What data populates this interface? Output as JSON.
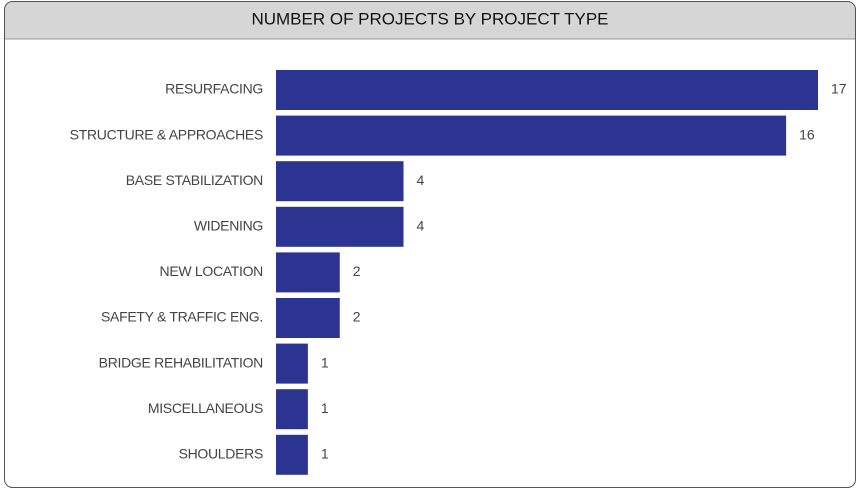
{
  "chart_data": {
    "type": "bar",
    "orientation": "horizontal",
    "title": "NUMBER OF PROJECTS BY PROJECT TYPE",
    "categories": [
      "RESURFACING",
      "STRUCTURE & APPROACHES",
      "BASE STABILIZATION",
      "WIDENING",
      "NEW LOCATION",
      "SAFETY & TRAFFIC ENG.",
      "BRIDGE REHABILITATION",
      "MISCELLANEOUS",
      "SHOULDERS"
    ],
    "values": [
      17,
      16,
      4,
      4,
      2,
      2,
      1,
      1,
      1
    ],
    "color": "#2b3591"
  }
}
